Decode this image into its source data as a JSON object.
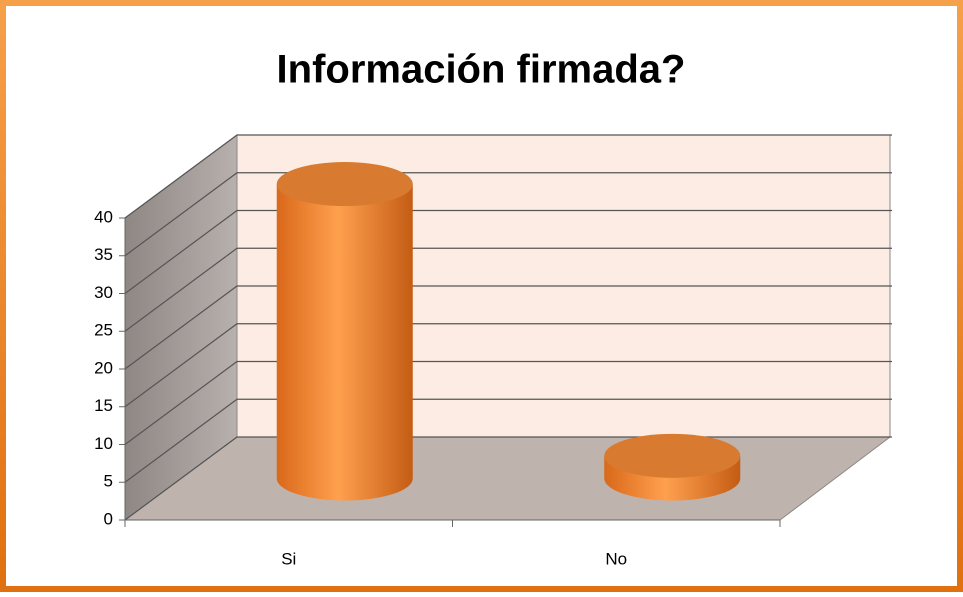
{
  "chart_data": {
    "type": "bar3d",
    "title": "Información firmada?",
    "categories": [
      "Si",
      "No"
    ],
    "values": [
      39,
      3
    ],
    "color": "#f28a30",
    "ylim": [
      0,
      40
    ],
    "yticks": [
      0,
      5,
      10,
      15,
      20,
      25,
      30,
      35,
      40
    ],
    "grid": true
  }
}
